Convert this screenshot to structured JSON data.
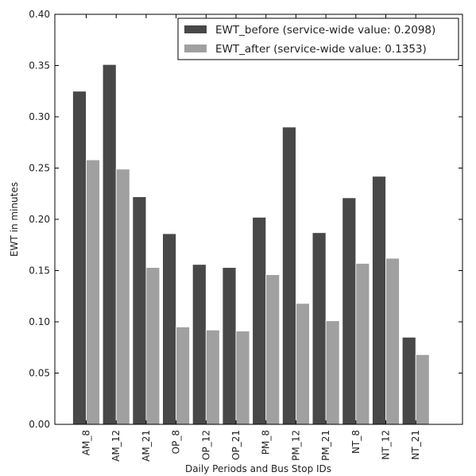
{
  "chart_data": {
    "type": "bar",
    "xlabel": "Daily Periods and Bus Stop IDs",
    "ylabel": "EWT in minutes",
    "ylim": [
      0,
      0.4
    ],
    "yticks": [
      "0.00",
      "0.05",
      "0.10",
      "0.15",
      "0.20",
      "0.25",
      "0.30",
      "0.35",
      "0.40"
    ],
    "categories": [
      "AM_8",
      "AM_12",
      "AM_21",
      "OP_8",
      "OP_12",
      "OP_21",
      "PM_8",
      "PM_12",
      "PM_21",
      "NT_8",
      "NT_12",
      "NT_21"
    ],
    "series": [
      {
        "name": "EWT_before (service-wide value: 0.2098)",
        "color": "#484848",
        "values": [
          0.325,
          0.351,
          0.222,
          0.186,
          0.156,
          0.153,
          0.202,
          0.29,
          0.187,
          0.221,
          0.242,
          0.085
        ]
      },
      {
        "name": "EWT_after (service-wide value: 0.1353)",
        "color": "#a0a0a0",
        "values": [
          0.258,
          0.249,
          0.153,
          0.095,
          0.092,
          0.091,
          0.146,
          0.118,
          0.101,
          0.157,
          0.162,
          0.068
        ]
      }
    ],
    "grid": false,
    "legend": "top-right"
  }
}
